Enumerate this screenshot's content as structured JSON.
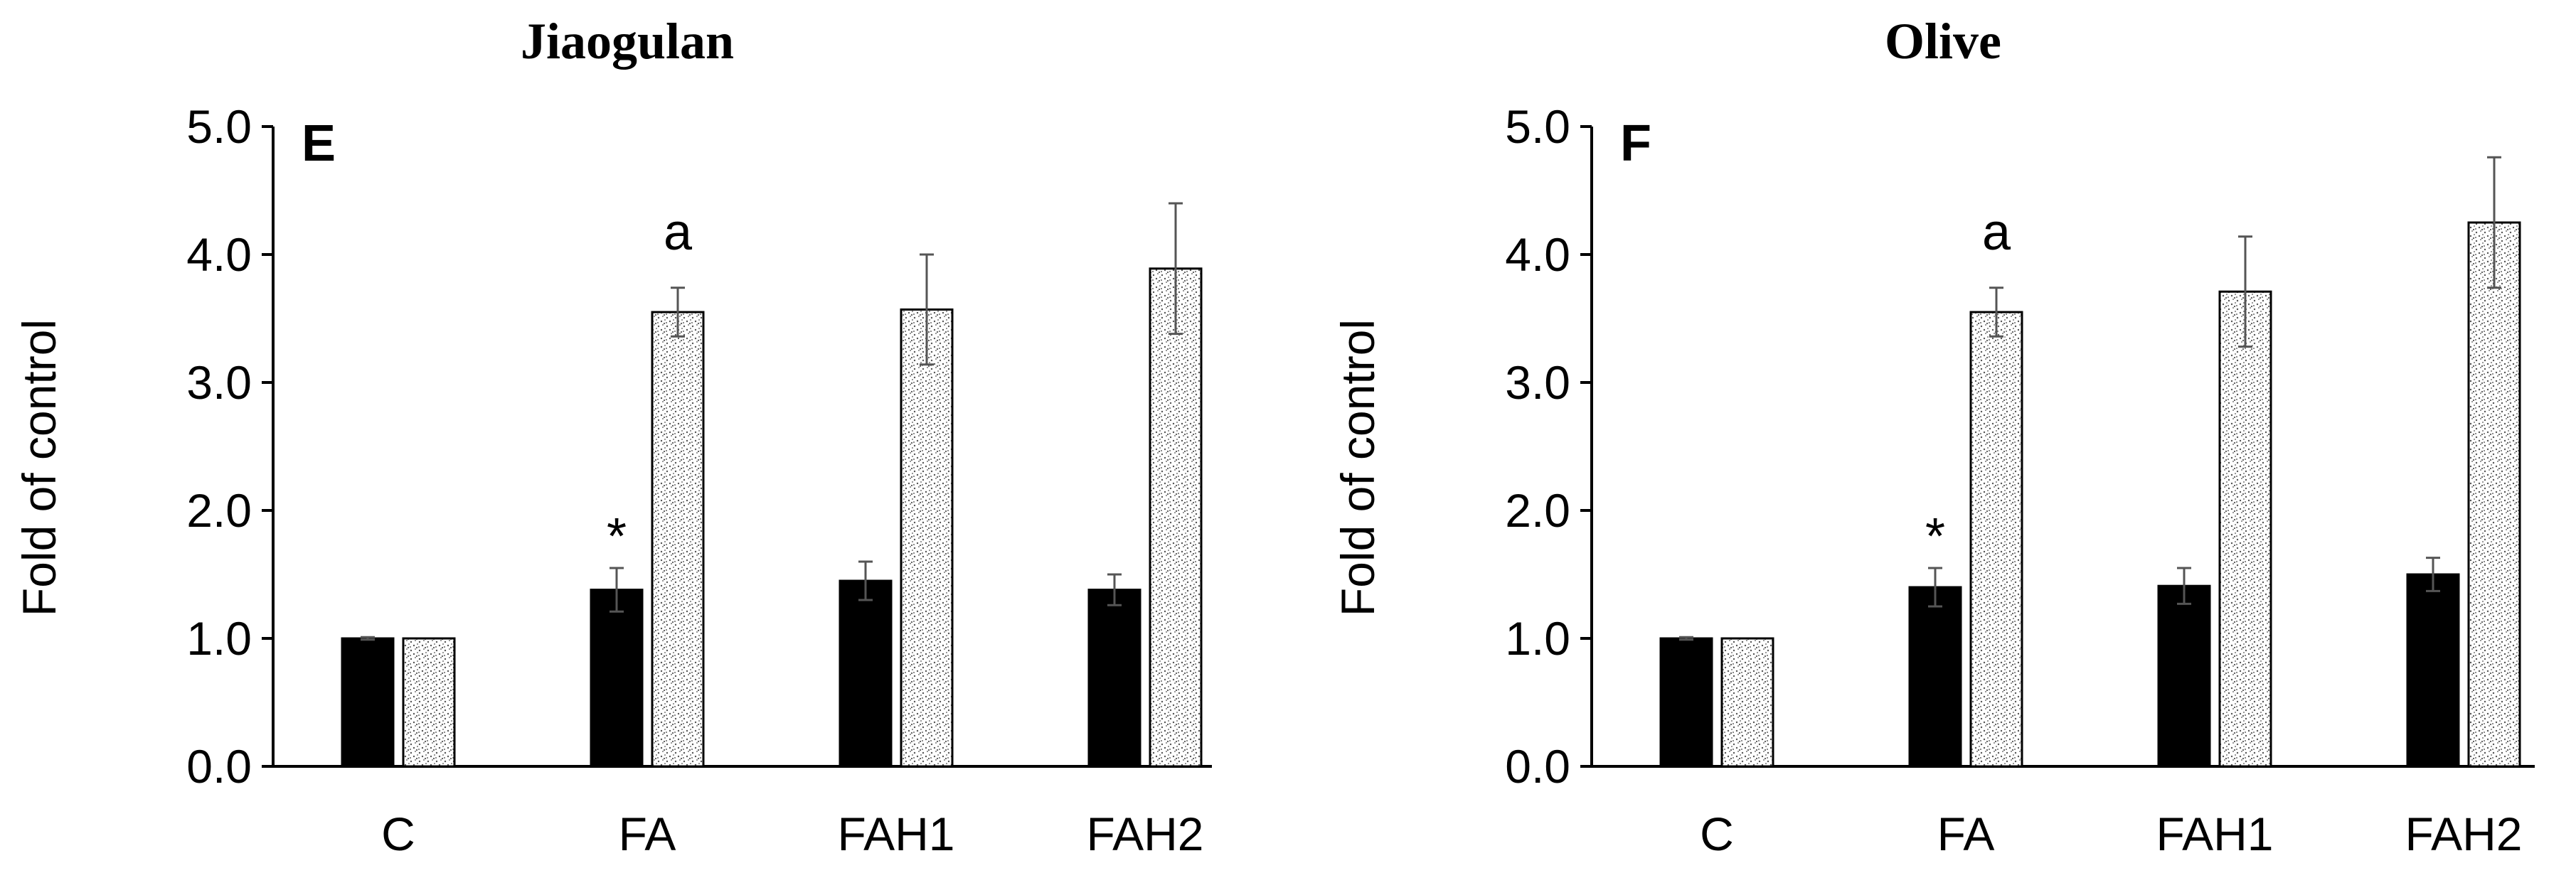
{
  "colors": {
    "series1": "#000000",
    "series2_pattern": "stipple",
    "error_bar": "#555555"
  },
  "chart_data": [
    {
      "type": "bar",
      "title": "Jiaogulan",
      "panel_letter": "E",
      "ylabel": "Fold of control",
      "xlabel": "",
      "ylim": [
        0,
        5
      ],
      "yticks": [
        "0.0",
        "1.0",
        "2.0",
        "3.0",
        "4.0",
        "5.0"
      ],
      "categories": [
        "C",
        "FA",
        "FAH1",
        "FAH2"
      ],
      "series": [
        {
          "fill": "solid",
          "values": [
            1.0,
            1.38,
            1.45,
            1.38
          ],
          "errors": [
            0.01,
            0.17,
            0.15,
            0.12
          ]
        },
        {
          "fill": "stipple",
          "values": [
            1.0,
            3.55,
            3.57,
            3.89
          ],
          "errors": [
            0.0,
            0.19,
            0.43,
            0.51
          ]
        }
      ],
      "annotations": [
        {
          "text": "*",
          "category": "FA",
          "series": 0
        },
        {
          "text": "a",
          "category": "FA",
          "series": 1
        }
      ],
      "grid": false,
      "legend": "none"
    },
    {
      "type": "bar",
      "title": "Olive",
      "panel_letter": "F",
      "ylabel": "Fold of control",
      "xlabel": "",
      "ylim": [
        0,
        5
      ],
      "yticks": [
        "0.0",
        "1.0",
        "2.0",
        "3.0",
        "4.0",
        "5.0"
      ],
      "categories": [
        "C",
        "FA",
        "FAH1",
        "FAH2"
      ],
      "series": [
        {
          "fill": "solid",
          "values": [
            1.0,
            1.4,
            1.41,
            1.5
          ],
          "errors": [
            0.01,
            0.15,
            0.14,
            0.13
          ]
        },
        {
          "fill": "stipple",
          "values": [
            1.0,
            3.55,
            3.71,
            4.25
          ],
          "errors": [
            0.0,
            0.19,
            0.43,
            0.51
          ]
        }
      ],
      "annotations": [
        {
          "text": "*",
          "category": "FA",
          "series": 0
        },
        {
          "text": "a",
          "category": "FA",
          "series": 1
        }
      ],
      "grid": false,
      "legend": "none"
    }
  ]
}
